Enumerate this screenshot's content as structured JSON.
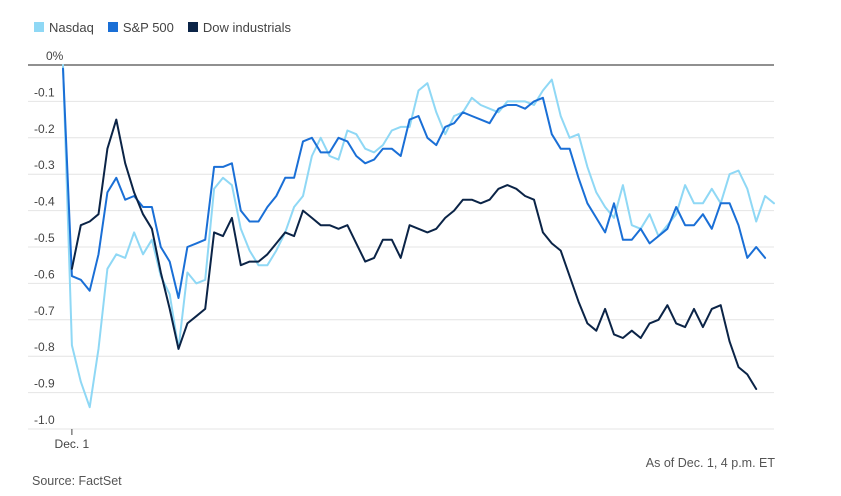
{
  "chart_data": {
    "type": "line",
    "title": "",
    "xlabel": "",
    "ylabel": "",
    "ylim": [
      -1.0,
      0
    ],
    "yticks": [
      {
        "value": 0,
        "label": "0%"
      },
      {
        "value": -0.1,
        "label": "-0.1"
      },
      {
        "value": -0.2,
        "label": "-0.2"
      },
      {
        "value": -0.3,
        "label": "-0.3"
      },
      {
        "value": -0.4,
        "label": "-0.4"
      },
      {
        "value": -0.5,
        "label": "-0.5"
      },
      {
        "value": -0.6,
        "label": "-0.6"
      },
      {
        "value": -0.7,
        "label": "-0.7"
      },
      {
        "value": -0.8,
        "label": "-0.8"
      },
      {
        "value": -0.9,
        "label": "-0.9"
      },
      {
        "value": -1.0,
        "label": "-1.0"
      }
    ],
    "xticks": [
      {
        "index": 1,
        "label": "Dec. 1"
      }
    ],
    "grid": true,
    "legend_position": "top-left",
    "series": [
      {
        "name": "Nasdaq",
        "color": "#8fd8f5",
        "values": [
          0,
          -0.77,
          -0.87,
          -0.94,
          -0.78,
          -0.56,
          -0.52,
          -0.53,
          -0.46,
          -0.52,
          -0.48,
          -0.58,
          -0.63,
          -0.78,
          -0.57,
          -0.6,
          -0.59,
          -0.34,
          -0.31,
          -0.33,
          -0.45,
          -0.51,
          -0.55,
          -0.55,
          -0.51,
          -0.46,
          -0.39,
          -0.36,
          -0.25,
          -0.2,
          -0.25,
          -0.26,
          -0.18,
          -0.19,
          -0.23,
          -0.24,
          -0.22,
          -0.18,
          -0.17,
          -0.17,
          -0.07,
          -0.05,
          -0.13,
          -0.19,
          -0.14,
          -0.13,
          -0.09,
          -0.11,
          -0.12,
          -0.13,
          -0.1,
          -0.1,
          -0.1,
          -0.11,
          -0.07,
          -0.04,
          -0.14,
          -0.2,
          -0.19,
          -0.28,
          -0.35,
          -0.39,
          -0.42,
          -0.33,
          -0.44,
          -0.45,
          -0.41,
          -0.47,
          -0.44,
          -0.41,
          -0.33,
          -0.38,
          -0.38,
          -0.34,
          -0.38,
          -0.3,
          -0.29,
          -0.34,
          -0.43,
          -0.36,
          -0.38
        ]
      },
      {
        "name": "S&P 500",
        "color": "#1a6fd6",
        "values": [
          -0.01,
          -0.58,
          -0.59,
          -0.62,
          -0.52,
          -0.35,
          -0.31,
          -0.37,
          -0.36,
          -0.39,
          -0.39,
          -0.5,
          -0.54,
          -0.64,
          -0.5,
          -0.49,
          -0.48,
          -0.28,
          -0.28,
          -0.27,
          -0.4,
          -0.43,
          -0.43,
          -0.39,
          -0.36,
          -0.31,
          -0.31,
          -0.21,
          -0.2,
          -0.24,
          -0.24,
          -0.2,
          -0.21,
          -0.25,
          -0.27,
          -0.26,
          -0.23,
          -0.23,
          -0.25,
          -0.15,
          -0.14,
          -0.2,
          -0.22,
          -0.17,
          -0.16,
          -0.13,
          -0.14,
          -0.15,
          -0.16,
          -0.12,
          -0.11,
          -0.11,
          -0.12,
          -0.1,
          -0.09,
          -0.19,
          -0.23,
          -0.23,
          -0.31,
          -0.38,
          -0.42,
          -0.46,
          -0.38,
          -0.48,
          -0.48,
          -0.45,
          -0.49,
          -0.47,
          -0.45,
          -0.39,
          -0.44,
          -0.44,
          -0.41,
          -0.45,
          -0.38,
          -0.38,
          -0.44,
          -0.53,
          -0.5,
          -0.53
        ]
      },
      {
        "name": "Dow industrials",
        "color": "#0b2447",
        "values": [
          null,
          -0.56,
          -0.44,
          -0.43,
          -0.41,
          -0.23,
          -0.15,
          -0.27,
          -0.35,
          -0.41,
          -0.45,
          -0.57,
          -0.67,
          -0.78,
          -0.71,
          -0.69,
          -0.67,
          -0.46,
          -0.47,
          -0.42,
          -0.55,
          -0.54,
          -0.54,
          -0.52,
          -0.49,
          -0.46,
          -0.47,
          -0.4,
          -0.42,
          -0.44,
          -0.44,
          -0.45,
          -0.44,
          -0.49,
          -0.54,
          -0.53,
          -0.48,
          -0.48,
          -0.53,
          -0.44,
          -0.45,
          -0.46,
          -0.45,
          -0.42,
          -0.4,
          -0.37,
          -0.37,
          -0.38,
          -0.37,
          -0.34,
          -0.33,
          -0.34,
          -0.36,
          -0.37,
          -0.46,
          -0.49,
          -0.51,
          -0.58,
          -0.65,
          -0.71,
          -0.73,
          -0.67,
          -0.74,
          -0.75,
          -0.73,
          -0.75,
          -0.71,
          -0.7,
          -0.66,
          -0.71,
          -0.72,
          -0.67,
          -0.72,
          -0.67,
          -0.66,
          -0.76,
          -0.83,
          -0.85,
          -0.89
        ]
      }
    ]
  },
  "legend": [
    {
      "label": "Nasdaq",
      "color": "#8fd8f5"
    },
    {
      "label": "S&P 500",
      "color": "#1a6fd6"
    },
    {
      "label": "Dow industrials",
      "color": "#0b2447"
    }
  ],
  "footer": {
    "asof": "As of Dec. 1, 4 p.m. ET",
    "source": "Source: FactSet"
  }
}
